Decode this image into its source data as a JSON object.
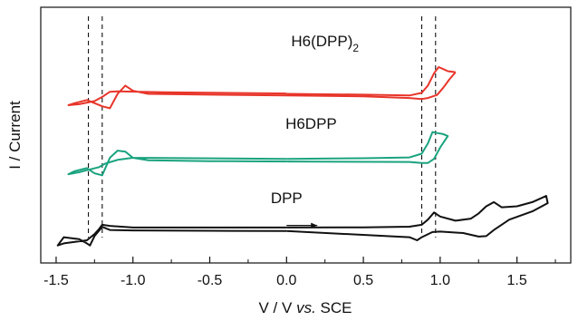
{
  "chart_data": {
    "type": "line",
    "xlabel": {
      "main": "V / V ",
      "italic": "vs.",
      "tail": " SCE"
    },
    "ylabel": "I / Current",
    "xlim": [
      -1.6,
      1.85
    ],
    "ticks": [
      -1.5,
      -1.0,
      -0.5,
      0.0,
      0.5,
      1.0,
      1.5
    ],
    "tick_labels": [
      "-1.5",
      "-1.0",
      "-0.5",
      "0.0",
      "0.5",
      "1.0",
      "1.5"
    ],
    "y_ticks_shown": false,
    "reference_lines_x": [
      -1.29,
      -1.2,
      0.88,
      0.97
    ],
    "colors": {
      "H6(DPP)2": "#e8352a",
      "H6DPP": "#1aa37f",
      "DPP": "#111111"
    },
    "series": [
      {
        "name": "H6(DPP)2",
        "label_main": "H6(DPP)",
        "label_sub": "2",
        "color": "#e8352a",
        "forward": [
          [
            0.0,
            70
          ],
          [
            0.5,
            69.6
          ],
          [
            0.8,
            69.2
          ],
          [
            0.88,
            70.5
          ],
          [
            0.92,
            74
          ],
          [
            0.96,
            80
          ],
          [
            0.99,
            83
          ],
          [
            1.02,
            82
          ],
          [
            1.05,
            81
          ],
          [
            1.1,
            80.5
          ]
        ],
        "reverse": [
          [
            1.1,
            80.5
          ],
          [
            1.06,
            77
          ],
          [
            1.02,
            73
          ],
          [
            0.98,
            69.5
          ],
          [
            0.92,
            68
          ],
          [
            0.88,
            67.5
          ],
          [
            0.8,
            68
          ],
          [
            0.5,
            68.8
          ],
          [
            0.0,
            69.2
          ],
          [
            -0.5,
            69.6
          ],
          [
            -0.9,
            70
          ],
          [
            -1.0,
            71.5
          ],
          [
            -1.05,
            74
          ],
          [
            -1.1,
            70
          ],
          [
            -1.15,
            63
          ],
          [
            -1.2,
            64
          ],
          [
            -1.3,
            67
          ],
          [
            -1.38,
            65.5
          ],
          [
            -1.42,
            64.5
          ],
          [
            -1.35,
            65
          ],
          [
            -1.25,
            66.5
          ],
          [
            -1.2,
            68.5
          ],
          [
            -1.15,
            71
          ],
          [
            -1.1,
            71.2
          ],
          [
            -0.8,
            70.8
          ],
          [
            0.0,
            70.2
          ]
        ]
      },
      {
        "name": "H6DPP",
        "label_main": "H6DPP",
        "label_sub": "",
        "color": "#1aa37f",
        "forward": [
          [
            0.0,
            38.5
          ],
          [
            0.5,
            38.8
          ],
          [
            0.8,
            39.2
          ],
          [
            0.88,
            41
          ],
          [
            0.92,
            46
          ],
          [
            0.95,
            51.5
          ],
          [
            0.98,
            51
          ],
          [
            1.02,
            50.5
          ],
          [
            1.05,
            49.5
          ],
          [
            1.0,
            44
          ],
          [
            0.96,
            38.5
          ],
          [
            0.92,
            36.5
          ],
          [
            0.88,
            36.5
          ],
          [
            0.8,
            37
          ],
          [
            0.0,
            37.2
          ]
        ],
        "reverse": [
          [
            0.0,
            37.2
          ],
          [
            -0.5,
            37.4
          ],
          [
            -0.9,
            37.8
          ],
          [
            -1.0,
            39
          ],
          [
            -1.05,
            42
          ],
          [
            -1.1,
            42.5
          ],
          [
            -1.15,
            39
          ],
          [
            -1.2,
            30.5
          ],
          [
            -1.25,
            31.5
          ],
          [
            -1.3,
            34
          ],
          [
            -1.38,
            32.5
          ],
          [
            -1.42,
            31
          ],
          [
            -1.35,
            32
          ],
          [
            -1.3,
            33
          ],
          [
            -1.22,
            34.5
          ],
          [
            -1.18,
            36.2
          ],
          [
            -1.1,
            38
          ],
          [
            -1.0,
            39
          ],
          [
            0.0,
            38.5
          ]
        ]
      },
      {
        "name": "DPP",
        "label_main": "DPP",
        "label_sub": "",
        "color": "#111111",
        "forward": [
          [
            0.0,
            5.2
          ],
          [
            0.5,
            5.3
          ],
          [
            0.8,
            5.6
          ],
          [
            0.88,
            6.5
          ],
          [
            0.92,
            9
          ],
          [
            0.96,
            12.5
          ],
          [
            1.0,
            10.5
          ],
          [
            1.1,
            8.5
          ],
          [
            1.2,
            9.5
          ],
          [
            1.25,
            12
          ],
          [
            1.3,
            15.5
          ],
          [
            1.35,
            17.5
          ],
          [
            1.4,
            15
          ],
          [
            1.5,
            15.5
          ],
          [
            1.6,
            17.5
          ],
          [
            1.69,
            20.5
          ],
          [
            1.7,
            17
          ],
          [
            1.6,
            13
          ],
          [
            1.45,
            9
          ],
          [
            1.35,
            4
          ],
          [
            1.3,
            1
          ],
          [
            1.25,
            0.8
          ],
          [
            1.15,
            2.5
          ],
          [
            1.0,
            3.2
          ],
          [
            0.95,
            3
          ],
          [
            0.88,
            0.5
          ],
          [
            0.85,
            -1
          ],
          [
            0.8,
            0.5
          ],
          [
            0.0,
            3.5
          ]
        ],
        "reverse": [
          [
            0.0,
            3.5
          ],
          [
            -0.5,
            3.6
          ],
          [
            -1.0,
            3.8
          ],
          [
            -1.15,
            4
          ],
          [
            -1.2,
            5.5
          ],
          [
            -1.25,
            1
          ],
          [
            -1.28,
            -3.5
          ],
          [
            -1.3,
            -2.5
          ],
          [
            -1.35,
            -0.5
          ],
          [
            -1.45,
            0.5
          ],
          [
            -1.49,
            -3.5
          ],
          [
            -1.45,
            -2.5
          ],
          [
            -1.3,
            -1
          ],
          [
            -1.25,
            2
          ],
          [
            -1.22,
            4.5
          ],
          [
            -1.2,
            6.5
          ],
          [
            -1.15,
            6
          ],
          [
            -1.0,
            5.2
          ],
          [
            0.0,
            5.2
          ]
        ]
      }
    ],
    "arrow_direction": "right"
  }
}
